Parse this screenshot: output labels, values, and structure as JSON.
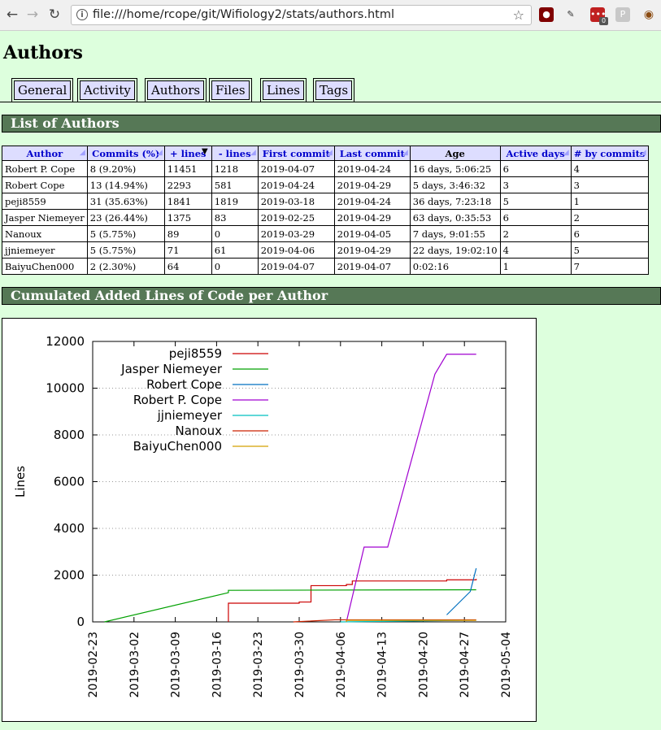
{
  "browser": {
    "url": "file:///home/rcope/git/Wifiology2/stats/authors.html",
    "ext_badge": "0",
    "ext_p_label": "P"
  },
  "page": {
    "title": "Authors",
    "tabs": [
      "General",
      "Activity",
      "Authors",
      "Files",
      "Lines",
      "Tags"
    ],
    "section_list": "List of Authors",
    "section_chart": "Cumulated Added Lines of Code per Author"
  },
  "table": {
    "headers": [
      "Author",
      "Commits (%)",
      "+ lines",
      "- lines",
      "First commit",
      "Last commit",
      "Age",
      "Active days",
      "# by commits"
    ],
    "rows": [
      [
        "Robert P. Cope",
        "8 (9.20%)",
        "11451",
        "1218",
        "2019-04-07",
        "2019-04-24",
        "16 days, 5:06:25",
        "6",
        "4"
      ],
      [
        "Robert Cope",
        "13 (14.94%)",
        "2293",
        "581",
        "2019-04-24",
        "2019-04-29",
        "5 days, 3:46:32",
        "3",
        "3"
      ],
      [
        "peji8559",
        "31 (35.63%)",
        "1841",
        "1819",
        "2019-03-18",
        "2019-04-24",
        "36 days, 7:23:18",
        "5",
        "1"
      ],
      [
        "Jasper Niemeyer",
        "23 (26.44%)",
        "1375",
        "83",
        "2019-02-25",
        "2019-04-29",
        "63 days, 0:35:53",
        "6",
        "2"
      ],
      [
        "Nanoux",
        "5 (5.75%)",
        "89",
        "0",
        "2019-03-29",
        "2019-04-05",
        "7 days, 9:01:55",
        "2",
        "6"
      ],
      [
        "jjniemeyer",
        "5 (5.75%)",
        "71",
        "61",
        "2019-04-06",
        "2019-04-29",
        "22 days, 19:02:10",
        "4",
        "5"
      ],
      [
        "BaiyuChen000",
        "2 (2.30%)",
        "64",
        "0",
        "2019-04-07",
        "2019-04-07",
        "0:02:16",
        "1",
        "7"
      ]
    ]
  },
  "chart_data": {
    "type": "line",
    "ylabel": "Lines",
    "xlabel": "",
    "ylim": [
      0,
      12000
    ],
    "yticks": [
      0,
      2000,
      4000,
      6000,
      8000,
      10000,
      12000
    ],
    "xticks": [
      "2019-02-23",
      "2019-03-02",
      "2019-03-09",
      "2019-03-16",
      "2019-03-23",
      "2019-03-30",
      "2019-04-06",
      "2019-04-13",
      "2019-04-20",
      "2019-04-27",
      "2019-05-04"
    ],
    "xlim": [
      "2019-02-23",
      "2019-05-04"
    ],
    "grid": "horizontal dotted",
    "legend": "top-left",
    "series": [
      {
        "name": "peji8559",
        "color": "#cc0000",
        "step": true,
        "points": [
          [
            "2019-03-18",
            0
          ],
          [
            "2019-03-18",
            800
          ],
          [
            "2019-03-30",
            850
          ],
          [
            "2019-04-01",
            1550
          ],
          [
            "2019-04-07",
            1600
          ],
          [
            "2019-04-08",
            1750
          ],
          [
            "2019-04-24",
            1800
          ],
          [
            "2019-04-29",
            1841
          ]
        ]
      },
      {
        "name": "Jasper Niemeyer",
        "color": "#00a000",
        "points": [
          [
            "2019-02-25",
            0
          ],
          [
            "2019-03-18",
            1250
          ],
          [
            "2019-03-18",
            1350
          ],
          [
            "2019-04-29",
            1375
          ]
        ]
      },
      {
        "name": "Robert Cope",
        "color": "#0070c0",
        "points": [
          [
            "2019-04-24",
            300
          ],
          [
            "2019-04-28",
            1300
          ],
          [
            "2019-04-29",
            2293
          ]
        ]
      },
      {
        "name": "Robert P. Cope",
        "color": "#a000d0",
        "points": [
          [
            "2019-04-07",
            0
          ],
          [
            "2019-04-10",
            3200
          ],
          [
            "2019-04-14",
            3200
          ],
          [
            "2019-04-22",
            10600
          ],
          [
            "2019-04-24",
            11451
          ],
          [
            "2019-04-29",
            11451
          ]
        ]
      },
      {
        "name": "jjniemeyer",
        "color": "#00c0c0",
        "points": [
          [
            "2019-04-06",
            0
          ],
          [
            "2019-04-29",
            71
          ]
        ]
      },
      {
        "name": "Nanoux",
        "color": "#cc2200",
        "points": [
          [
            "2019-03-29",
            0
          ],
          [
            "2019-04-05",
            89
          ],
          [
            "2019-04-29",
            89
          ]
        ]
      },
      {
        "name": "BaiyuChen000",
        "color": "#d4a000",
        "points": [
          [
            "2019-04-07",
            0
          ],
          [
            "2019-04-07",
            64
          ],
          [
            "2019-04-29",
            64
          ]
        ]
      }
    ]
  }
}
